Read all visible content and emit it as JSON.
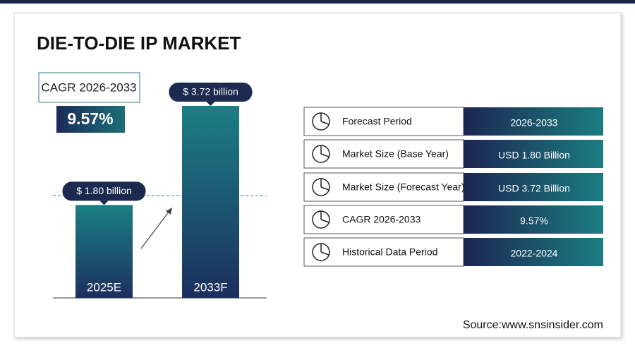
{
  "chart_data": {
    "type": "bar",
    "title": "DIE-TO-DIE IP MARKET",
    "categories": [
      "2025E",
      "2033F"
    ],
    "values": [
      1.8,
      3.72
    ],
    "value_labels": [
      "$ 1.80 billion",
      "$ 3.72 billion"
    ]
  },
  "cagr": {
    "label": "CAGR 2026-2033",
    "value": "9.57%"
  },
  "table": {
    "rows": [
      [
        "Forecast Period",
        "2026-2033"
      ],
      [
        "Market Size (Base Year)",
        "USD 1.80 Billion"
      ],
      [
        "Market Size (Forecast Year)",
        "USD 3.72 Billion"
      ],
      [
        "CAGR 2026-2033",
        "9.57%"
      ],
      [
        "Historical Data Period",
        "2022-2024"
      ]
    ]
  },
  "source": "Source:www.snsinsider.com"
}
